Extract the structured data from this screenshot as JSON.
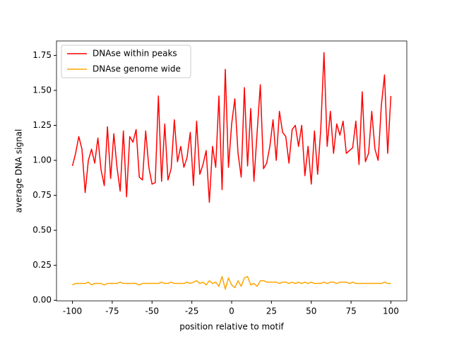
{
  "chart_data": {
    "type": "line",
    "xlabel": "position relative to motif",
    "ylabel": "average DNA signal",
    "x": [
      -100,
      -98,
      -96,
      -94,
      -92,
      -90,
      -88,
      -86,
      -84,
      -82,
      -80,
      -78,
      -76,
      -74,
      -72,
      -70,
      -68,
      -66,
      -64,
      -62,
      -60,
      -58,
      -56,
      -54,
      -52,
      -50,
      -48,
      -46,
      -44,
      -42,
      -40,
      -38,
      -36,
      -34,
      -32,
      -30,
      -28,
      -26,
      -24,
      -22,
      -20,
      -18,
      -16,
      -14,
      -12,
      -10,
      -8,
      -6,
      -4,
      -2,
      0,
      2,
      4,
      6,
      8,
      10,
      12,
      14,
      16,
      18,
      20,
      22,
      24,
      26,
      28,
      30,
      32,
      34,
      36,
      38,
      40,
      42,
      44,
      46,
      48,
      50,
      52,
      54,
      56,
      58,
      60,
      62,
      64,
      66,
      68,
      70,
      72,
      74,
      76,
      78,
      80,
      82,
      84,
      86,
      88,
      90,
      92,
      94,
      96,
      98,
      100
    ],
    "series": [
      {
        "name": "DNAse within peaks",
        "color": "#ff0000",
        "values": [
          0.96,
          1.05,
          1.17,
          1.08,
          0.77,
          1.0,
          1.08,
          0.98,
          1.16,
          0.93,
          0.82,
          1.24,
          0.87,
          1.19,
          0.95,
          0.78,
          1.21,
          0.74,
          1.17,
          1.13,
          1.22,
          0.88,
          0.86,
          1.21,
          0.95,
          0.83,
          0.84,
          1.46,
          0.85,
          1.26,
          0.86,
          0.94,
          1.29,
          0.99,
          1.1,
          0.95,
          1.02,
          1.2,
          0.82,
          1.28,
          0.9,
          0.97,
          1.07,
          0.7,
          1.1,
          0.95,
          1.46,
          0.79,
          1.65,
          0.95,
          1.26,
          1.44,
          1.05,
          0.88,
          1.52,
          0.96,
          1.37,
          0.85,
          1.2,
          1.54,
          0.94,
          0.98,
          1.1,
          1.29,
          1.0,
          1.35,
          1.2,
          1.17,
          0.98,
          1.22,
          1.25,
          1.1,
          1.25,
          0.89,
          1.1,
          0.83,
          1.21,
          0.9,
          1.23,
          1.77,
          1.1,
          1.35,
          1.05,
          1.26,
          1.18,
          1.28,
          1.05,
          1.07,
          1.09,
          1.28,
          0.97,
          1.49,
          0.99,
          1.05,
          1.35,
          1.08,
          1.0,
          1.39,
          1.61,
          1.05,
          1.46
        ]
      },
      {
        "name": "DNAse genome wide",
        "color": "#ffa500",
        "values": [
          0.11,
          0.12,
          0.12,
          0.12,
          0.12,
          0.13,
          0.11,
          0.12,
          0.12,
          0.12,
          0.11,
          0.12,
          0.12,
          0.12,
          0.12,
          0.13,
          0.12,
          0.12,
          0.12,
          0.12,
          0.12,
          0.11,
          0.12,
          0.12,
          0.12,
          0.12,
          0.12,
          0.12,
          0.13,
          0.12,
          0.12,
          0.13,
          0.12,
          0.12,
          0.12,
          0.12,
          0.13,
          0.12,
          0.13,
          0.14,
          0.12,
          0.13,
          0.11,
          0.14,
          0.12,
          0.13,
          0.1,
          0.17,
          0.08,
          0.16,
          0.11,
          0.09,
          0.14,
          0.1,
          0.16,
          0.17,
          0.11,
          0.12,
          0.1,
          0.14,
          0.14,
          0.13,
          0.13,
          0.13,
          0.13,
          0.12,
          0.13,
          0.13,
          0.12,
          0.13,
          0.12,
          0.13,
          0.12,
          0.13,
          0.12,
          0.13,
          0.12,
          0.12,
          0.12,
          0.13,
          0.12,
          0.13,
          0.13,
          0.12,
          0.13,
          0.13,
          0.13,
          0.12,
          0.13,
          0.12,
          0.12,
          0.12,
          0.12,
          0.12,
          0.12,
          0.12,
          0.12,
          0.12,
          0.13,
          0.12,
          0.12
        ]
      }
    ],
    "xlim": [
      -110,
      110
    ],
    "ylim": [
      -0.004,
      1.853
    ],
    "xticks": [
      -100,
      -75,
      -50,
      -25,
      0,
      25,
      50,
      75,
      100
    ],
    "yticks": [
      {
        "value": 0,
        "label": "0.00"
      },
      {
        "value": 0.25,
        "label": "0.25"
      },
      {
        "value": 0.5,
        "label": "0.50"
      },
      {
        "value": 0.75,
        "label": "0.75"
      },
      {
        "value": 1,
        "label": "1.00"
      },
      {
        "value": 1.25,
        "label": "1.25"
      },
      {
        "value": 1.5,
        "label": "1.50"
      },
      {
        "value": 1.75,
        "label": "1.75"
      }
    ],
    "legend": "upper left"
  }
}
